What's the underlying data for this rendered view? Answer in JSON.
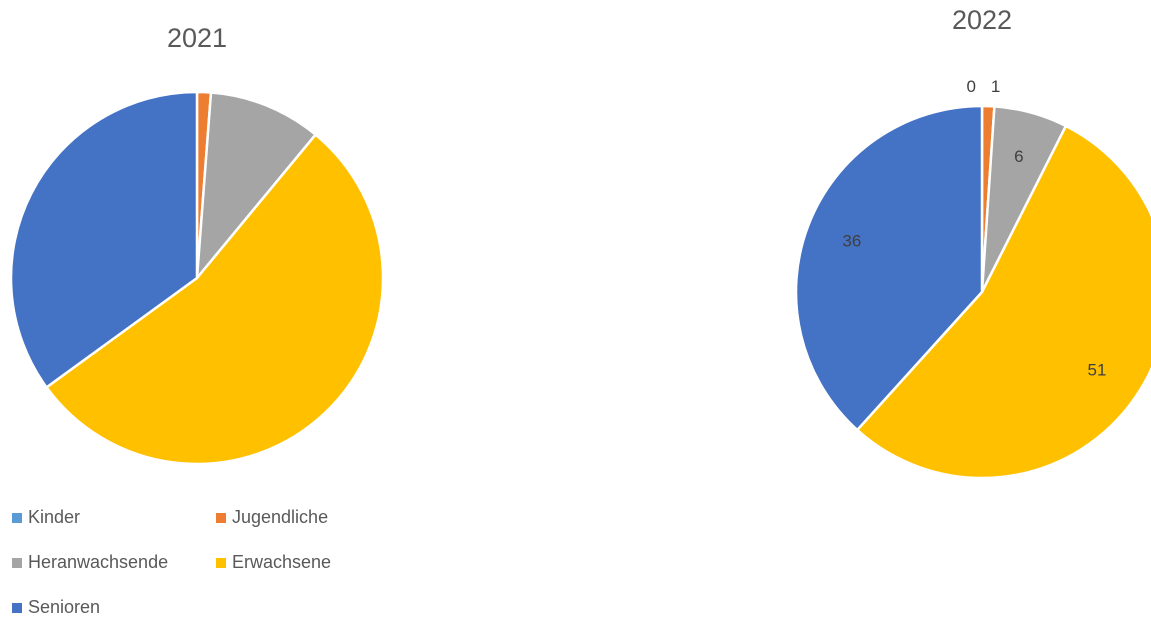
{
  "chart_data": [
    {
      "type": "pie",
      "title": "2021",
      "categories": [
        "Kinder",
        "Jugendliche",
        "Heranwachsende",
        "Erwachsene",
        "Senioren"
      ],
      "colors": [
        "#5b9bd5",
        "#ed7d31",
        "#a5a5a5",
        "#ffc000",
        "#4472c4"
      ],
      "values": [
        0,
        1.2,
        9.8,
        54,
        35
      ],
      "legend": "bottom"
    },
    {
      "type": "pie",
      "title": "2022",
      "categories": [
        "Kinder",
        "Jugendliche",
        "Heranwachsende",
        "Erwachsene",
        "Senioren"
      ],
      "colors": [
        "#5b9bd5",
        "#ed7d31",
        "#a5a5a5",
        "#ffc000",
        "#4472c4"
      ],
      "values": [
        0,
        1,
        6,
        51,
        36
      ],
      "data_labels": true
    }
  ]
}
